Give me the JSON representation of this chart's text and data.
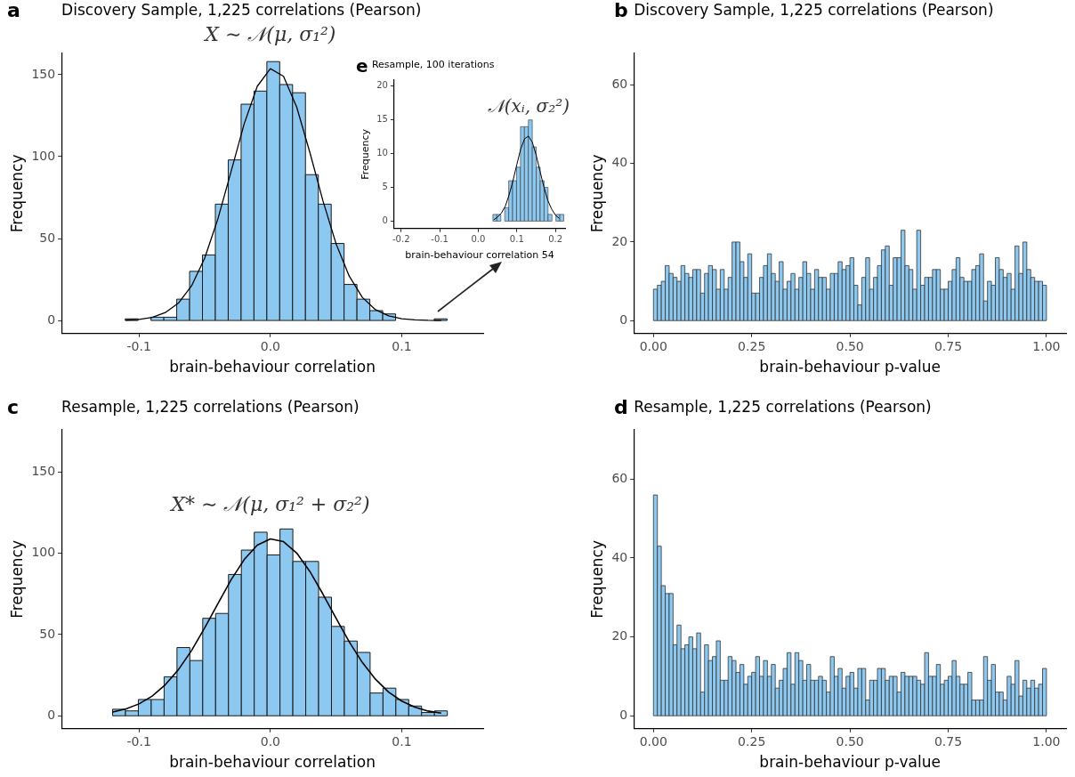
{
  "chart_data": [
    {
      "type": "histogram",
      "title": "Discovery Sample, 1,225 correlations (Pearson)",
      "xlabel": "brain-behaviour correlation",
      "ylabel": "Frequency",
      "annotations": [
        "a",
        "X ∼ 𝒩(μ, σ₁²)"
      ],
      "color": "#8cc8ef",
      "bins": [
        -0.1105,
        -0.1007,
        -0.0909,
        -0.0811,
        -0.0713,
        -0.0615,
        -0.0517,
        -0.0419,
        -0.0321,
        -0.0223,
        -0.0125,
        -0.0027,
        0.0071,
        0.0169,
        0.0267,
        0.0365,
        0.0463,
        0.0561,
        0.0659,
        0.0757,
        0.0855,
        0.0953,
        0.1051,
        0.1149,
        0.1247,
        0.1345
      ],
      "values": [
        1,
        0,
        2,
        2,
        13,
        30,
        40,
        71,
        98,
        132,
        140,
        158,
        144,
        139,
        89,
        71,
        47,
        22,
        13,
        6,
        4,
        0,
        0,
        0,
        1
      ],
      "series": [
        {
          "type": "line",
          "color": "#000000",
          "x": [
            -0.11,
            -0.1,
            -0.09,
            -0.08,
            -0.07,
            -0.06,
            -0.05,
            -0.04,
            -0.03,
            -0.02,
            -0.01,
            0,
            0.01,
            0.02,
            0.03,
            0.04,
            0.05,
            0.06,
            0.07,
            0.08,
            0.09,
            0.1,
            0.11,
            0.12,
            0.13
          ],
          "values": [
            0.2,
            0.7,
            1.9,
            4.8,
            10.6,
            21.1,
            38.1,
            61.9,
            90.7,
            119.9,
            142.9,
            153.7,
            149,
            130.3,
            102.7,
            73,
            46.8,
            27.1,
            14.1,
            6.6,
            2.8,
            1.1,
            0.4,
            0.1,
            0
          ]
        }
      ],
      "xlim": [
        -0.159,
        0.162
      ],
      "xticks": [
        -0.1,
        {
          "value": 0,
          "label": "0.0"
        },
        0.1
      ],
      "ylim": [
        -8,
        163
      ],
      "yticks": [
        0,
        50,
        100,
        150
      ]
    },
    {
      "type": "histogram",
      "title": "Resample, 100 iterations",
      "xlabel": "brain-behaviour correlation 54",
      "ylabel": "Frequency",
      "annotations": [
        "e",
        "𝒩(xᵢ, σ₂²)"
      ],
      "color": "#8cc8ef",
      "bins": [
        0.038,
        0.0482,
        0.0584,
        0.0686,
        0.0788,
        0.089,
        0.0992,
        0.1094,
        0.1196,
        0.1298,
        0.14,
        0.1502,
        0.1604,
        0.1706,
        0.1808,
        0.191,
        0.2012,
        0.2114,
        0.2216
      ],
      "values": [
        1,
        1,
        0,
        2,
        6,
        6,
        8,
        14,
        14,
        15,
        11,
        8,
        6,
        5,
        1,
        0,
        1,
        1
      ],
      "series": [
        {
          "type": "line",
          "color": "#000000",
          "x": [
            0.04,
            0.05,
            0.06,
            0.07,
            0.08,
            0.09,
            0.1,
            0.11,
            0.12,
            0.13,
            0.14,
            0.15,
            0.16,
            0.17,
            0.18,
            0.19,
            0.2,
            0.21
          ],
          "values": [
            0.2,
            0.6,
            1.2,
            2.2,
            3.9,
            6,
            8.4,
            10.7,
            12.2,
            12.6,
            11.7,
            9.8,
            7.4,
            5.1,
            3.1,
            1.8,
            0.9,
            0.4
          ]
        }
      ],
      "xlim": [
        -0.218,
        0.225
      ],
      "xticks": [
        -0.2,
        -0.1,
        {
          "value": 0,
          "label": "0.0"
        },
        0.1,
        0.2
      ],
      "ylim": [
        -1.1,
        20.9
      ],
      "yticks": [
        0,
        5,
        10,
        15,
        20
      ]
    },
    {
      "type": "histogram",
      "title": "Discovery Sample, 1,225 correlations (Pearson)",
      "xlabel": "brain-behaviour p-value",
      "ylabel": "Frequency",
      "annotations": [
        "b"
      ],
      "color": "#8cc8ef",
      "bins": [
        0,
        0.01,
        0.02,
        0.03,
        0.04,
        0.05,
        0.06,
        0.07,
        0.08,
        0.09,
        0.1,
        0.11,
        0.12,
        0.13,
        0.14,
        0.15,
        0.16,
        0.17,
        0.18,
        0.19,
        0.2,
        0.21,
        0.22,
        0.23,
        0.24,
        0.25,
        0.26,
        0.27,
        0.28,
        0.29,
        0.3,
        0.31,
        0.32,
        0.33,
        0.34,
        0.35,
        0.36,
        0.37,
        0.38,
        0.39,
        0.4,
        0.41,
        0.42,
        0.43,
        0.44,
        0.45,
        0.46,
        0.47,
        0.48,
        0.49,
        0.5,
        0.51,
        0.52,
        0.53,
        0.54,
        0.55,
        0.56,
        0.57,
        0.58,
        0.59,
        0.6,
        0.61,
        0.62,
        0.63,
        0.64,
        0.65,
        0.66,
        0.67,
        0.68,
        0.69,
        0.7,
        0.71,
        0.72,
        0.73,
        0.74,
        0.75,
        0.76,
        0.77,
        0.78,
        0.79,
        0.8,
        0.81,
        0.82,
        0.83,
        0.84,
        0.85,
        0.86,
        0.87,
        0.88,
        0.89,
        0.9,
        0.91,
        0.92,
        0.93,
        0.94,
        0.95,
        0.96,
        0.97,
        0.98,
        0.99,
        1
      ],
      "values": [
        8,
        9,
        10,
        14,
        12,
        11,
        10,
        14,
        12,
        11,
        13,
        13,
        7,
        12,
        14,
        13,
        8,
        13,
        8,
        11,
        20,
        20,
        15,
        11,
        17,
        7,
        7,
        11,
        14,
        17,
        12,
        10,
        15,
        8,
        10,
        12,
        8,
        11,
        15,
        12,
        8,
        13,
        11,
        11,
        8,
        12,
        12,
        15,
        13,
        14,
        16,
        9,
        4,
        11,
        16,
        8,
        11,
        14,
        18,
        19,
        9,
        16,
        16,
        23,
        14,
        13,
        8,
        23,
        9,
        11,
        11,
        13,
        13,
        8,
        8,
        10,
        13,
        16,
        11,
        10,
        10,
        13,
        14,
        17,
        5,
        10,
        9,
        16,
        13,
        11,
        12,
        8,
        19,
        12,
        20,
        13,
        11,
        10,
        10,
        9
      ],
      "xlim": [
        -0.05,
        1.05
      ],
      "xticks": [
        {
          "value": 0,
          "label": "0.00"
        },
        {
          "value": 0.25,
          "label": "0.25"
        },
        {
          "value": 0.5,
          "label": "0.50"
        },
        {
          "value": 0.75,
          "label": "0.75"
        },
        {
          "value": 1,
          "label": "1.00"
        }
      ],
      "ylim": [
        -3.3,
        68
      ],
      "yticks": [
        0,
        20,
        40,
        60
      ]
    },
    {
      "type": "histogram",
      "title": "Resample, 1,225 correlations (Pearson)",
      "xlabel": "brain-behaviour correlation",
      "ylabel": "Frequency",
      "annotations": [
        "c",
        "X* ∼ 𝒩(μ, σ₁² + σ₂²)"
      ],
      "color": "#8cc8ef",
      "bins": [
        -0.1201,
        -0.1103,
        -0.1005,
        -0.0907,
        -0.0809,
        -0.0711,
        -0.0613,
        -0.0515,
        -0.0417,
        -0.0319,
        -0.0221,
        -0.0123,
        -0.0025,
        0.0073,
        0.0171,
        0.0269,
        0.0367,
        0.0465,
        0.0563,
        0.0661,
        0.0759,
        0.0857,
        0.0955,
        0.1053,
        0.1151,
        0.1249,
        0.1347
      ],
      "values": [
        4,
        3,
        10,
        10,
        24,
        42,
        34,
        60,
        63,
        87,
        102,
        113,
        99,
        115,
        95,
        95,
        73,
        55,
        46,
        39,
        14,
        17,
        10,
        6,
        2,
        3
      ],
      "series": [
        {
          "type": "line",
          "color": "#000000",
          "x": [
            -0.12,
            -0.11,
            -0.1,
            -0.09,
            -0.08,
            -0.07,
            -0.06,
            -0.05,
            -0.04,
            -0.03,
            -0.02,
            -0.01,
            0,
            0.01,
            0.02,
            0.03,
            0.04,
            0.05,
            0.06,
            0.07,
            0.08,
            0.09,
            0.1,
            0.11,
            0.12,
            0.13
          ],
          "values": [
            2.3,
            4.2,
            7.3,
            12.1,
            19.1,
            28.4,
            40.2,
            54.1,
            69,
            83.6,
            96.1,
            105,
            108.9,
            107.2,
            100.2,
            88.9,
            74.9,
            60,
            45.5,
            32.8,
            22.5,
            14.6,
            9,
            5.3,
            2.9,
            1.6
          ]
        }
      ],
      "xlim": [
        -0.159,
        0.162
      ],
      "xticks": [
        -0.1,
        {
          "value": 0,
          "label": "0.0"
        },
        0.1
      ],
      "ylim": [
        -8,
        176
      ],
      "yticks": [
        0,
        50,
        100,
        150
      ]
    },
    {
      "type": "histogram",
      "title": "Resample, 1,225 correlations (Pearson)",
      "xlabel": "brain-behaviour p-value",
      "ylabel": "Frequency",
      "annotations": [
        "d"
      ],
      "color": "#8cc8ef",
      "bins": [
        0,
        0.01,
        0.02,
        0.03,
        0.04,
        0.05,
        0.06,
        0.07,
        0.08,
        0.09,
        0.1,
        0.11,
        0.12,
        0.13,
        0.14,
        0.15,
        0.16,
        0.17,
        0.18,
        0.19,
        0.2,
        0.21,
        0.22,
        0.23,
        0.24,
        0.25,
        0.26,
        0.27,
        0.28,
        0.29,
        0.3,
        0.31,
        0.32,
        0.33,
        0.34,
        0.35,
        0.36,
        0.37,
        0.38,
        0.39,
        0.4,
        0.41,
        0.42,
        0.43,
        0.44,
        0.45,
        0.46,
        0.47,
        0.48,
        0.49,
        0.5,
        0.51,
        0.52,
        0.53,
        0.54,
        0.55,
        0.56,
        0.57,
        0.58,
        0.59,
        0.6,
        0.61,
        0.62,
        0.63,
        0.64,
        0.65,
        0.66,
        0.67,
        0.68,
        0.69,
        0.7,
        0.71,
        0.72,
        0.73,
        0.74,
        0.75,
        0.76,
        0.77,
        0.78,
        0.79,
        0.8,
        0.81,
        0.82,
        0.83,
        0.84,
        0.85,
        0.86,
        0.87,
        0.88,
        0.89,
        0.9,
        0.91,
        0.92,
        0.93,
        0.94,
        0.95,
        0.96,
        0.97,
        0.98,
        0.99,
        1
      ],
      "values": [
        56,
        43,
        33,
        31,
        31,
        18,
        23,
        17,
        18,
        20,
        17,
        21,
        6,
        18,
        14,
        15,
        19,
        9,
        9,
        15,
        14,
        11,
        13,
        8,
        10,
        11,
        15,
        10,
        14,
        10,
        13,
        7,
        9,
        12,
        16,
        8,
        16,
        14,
        9,
        13,
        9,
        9,
        10,
        9,
        6,
        15,
        10,
        12,
        7,
        10,
        11,
        7,
        12,
        12,
        4,
        9,
        9,
        12,
        12,
        9,
        10,
        10,
        6,
        11,
        10,
        10,
        10,
        9,
        8,
        16,
        10,
        10,
        13,
        8,
        9,
        10,
        14,
        10,
        8,
        8,
        11,
        4,
        4,
        4,
        15,
        9,
        13,
        6,
        6,
        4,
        10,
        8,
        14,
        5,
        9,
        7,
        9,
        7,
        8,
        12
      ],
      "xlim": [
        -0.05,
        1.05
      ],
      "xticks": [
        {
          "value": 0,
          "label": "0.00"
        },
        {
          "value": 0.25,
          "label": "0.25"
        },
        {
          "value": 0.5,
          "label": "0.50"
        },
        {
          "value": 0.75,
          "label": "0.75"
        },
        {
          "value": 1,
          "label": "1.00"
        }
      ],
      "ylim": [
        -3.3,
        72.5
      ],
      "yticks": [
        0,
        20,
        40,
        60
      ]
    }
  ]
}
